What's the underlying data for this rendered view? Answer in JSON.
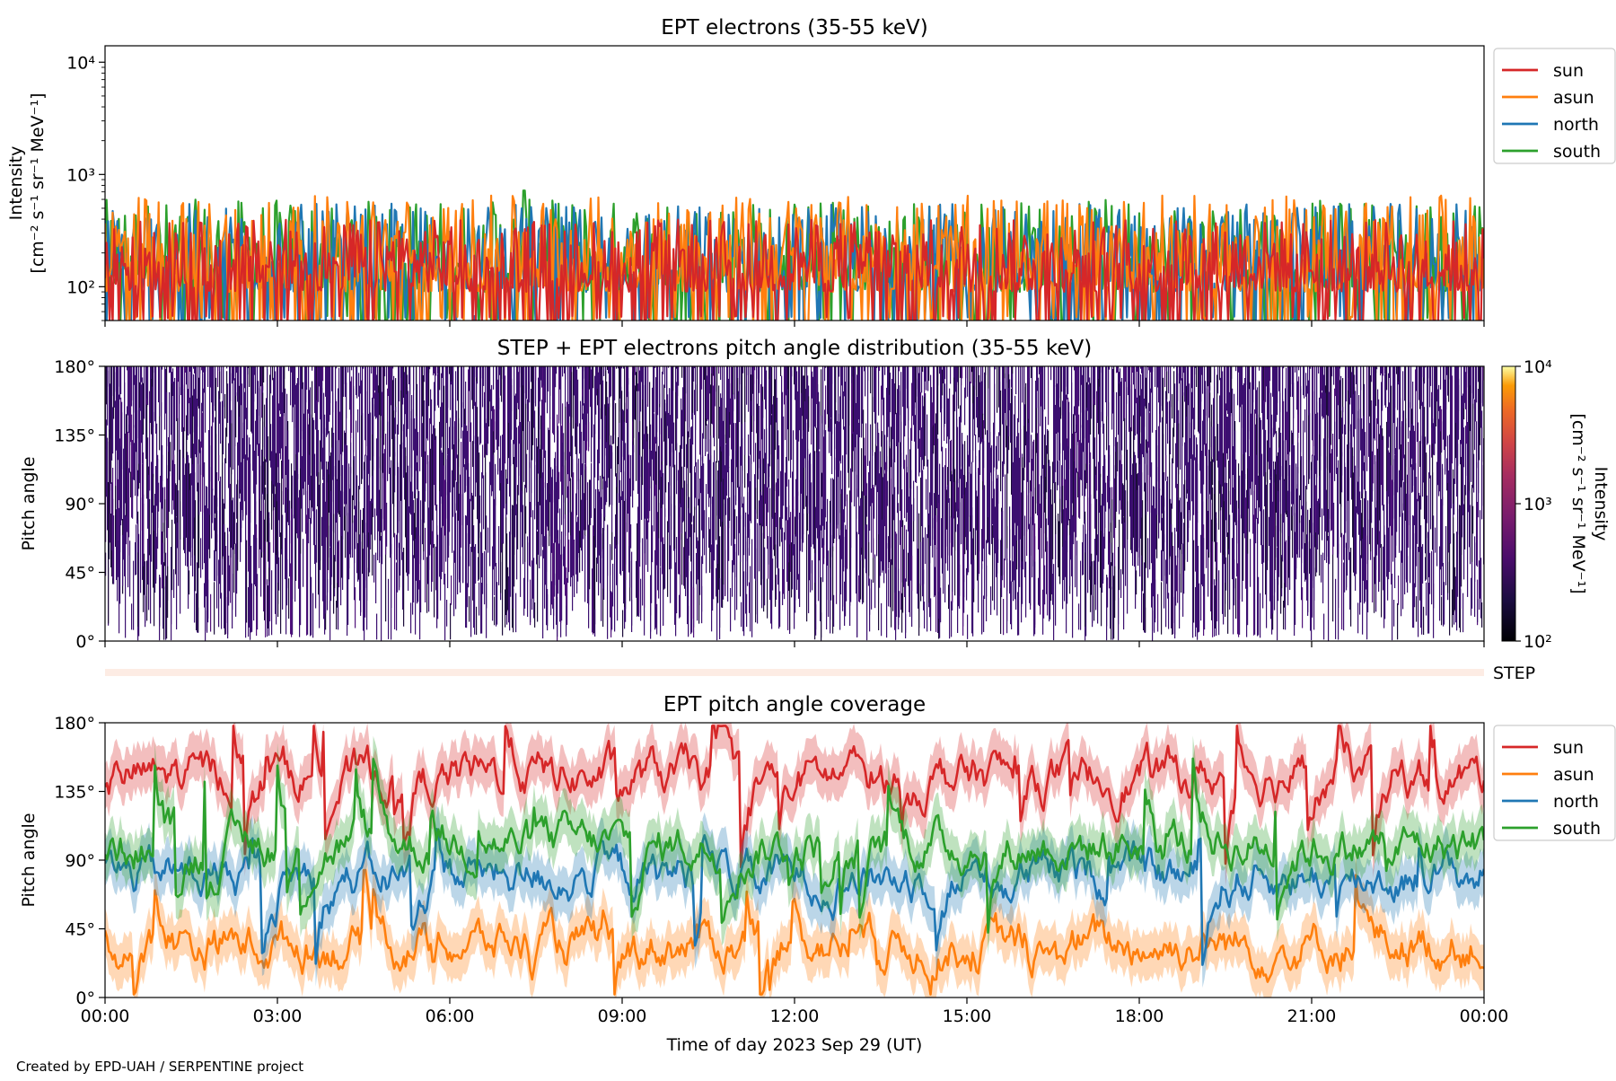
{
  "credit": "Created by EPD-UAH / SERPENTINE project",
  "colors": {
    "sun": "#d62728",
    "asun": "#ff7f0e",
    "north": "#1f77b4",
    "south": "#2ca02c"
  },
  "chart_data": [
    {
      "id": "intensity",
      "type": "line",
      "title": "EPT electrons (35-55 keV)",
      "ylabel_line1": "Intensity",
      "ylabel_line2": "[cm⁻² s⁻¹ sr⁻¹ MeV⁻¹]",
      "yscale": "log",
      "ylim": [
        50,
        14000
      ],
      "yticks": [
        {
          "value": 100,
          "label": "10²"
        },
        {
          "value": 1000,
          "label": "10³"
        },
        {
          "value": 10000,
          "label": "10⁴"
        }
      ],
      "xlim_hours": [
        0,
        24
      ],
      "legend": {
        "placement": "outside-right-top",
        "entries": [
          "sun",
          "asun",
          "north",
          "south"
        ]
      },
      "series": [
        {
          "name": "south",
          "color": "#2ca02c",
          "typical_range": [
            50,
            600
          ],
          "note_peak": 720
        },
        {
          "name": "north",
          "color": "#1f77b4",
          "typical_range": [
            50,
            550
          ]
        },
        {
          "name": "asun",
          "color": "#ff7f0e",
          "typical_range": [
            50,
            650
          ]
        },
        {
          "name": "sun",
          "color": "#d62728",
          "typical_range": [
            50,
            400
          ]
        }
      ]
    },
    {
      "id": "pad",
      "type": "heatmap",
      "title": "STEP + EPT electrons pitch angle distribution (35-55 keV)",
      "ylabel": "Pitch angle",
      "ylim": [
        0,
        180
      ],
      "yticks": [
        "0°",
        "45°",
        "90°",
        "135°",
        "180°"
      ],
      "xlim_hours": [
        0,
        24
      ],
      "colorbar": {
        "label_line1": "Intensity",
        "label_line2": "[cm⁻² s⁻¹ sr⁻¹ MeV⁻¹]",
        "scale": "log",
        "range": [
          100,
          10000
        ],
        "ticks": [
          "10²",
          "10³",
          "10⁴"
        ],
        "colormap": "inferno"
      },
      "dominant_intensity": 180
    },
    {
      "id": "step",
      "type": "bar",
      "label": "STEP",
      "xlim_hours": [
        0,
        24
      ]
    },
    {
      "id": "coverage",
      "type": "line",
      "title": "EPT pitch angle coverage",
      "ylabel": "Pitch angle",
      "ylim": [
        0,
        180
      ],
      "yticks": [
        "0°",
        "45°",
        "90°",
        "135°",
        "180°"
      ],
      "xlabel": "Time of day 2023 Sep 29 (UT)",
      "xticks": [
        "00:00",
        "03:00",
        "06:00",
        "09:00",
        "12:00",
        "15:00",
        "18:00",
        "21:00",
        "00:00"
      ],
      "xlim_hours": [
        0,
        24
      ],
      "legend": {
        "placement": "outside-right-top",
        "entries": [
          "sun",
          "asun",
          "north",
          "south"
        ]
      },
      "series": [
        {
          "name": "sun",
          "color": "#d62728",
          "mean_deg": 145,
          "spread_deg": 25
        },
        {
          "name": "asun",
          "color": "#ff7f0e",
          "mean_deg": 35,
          "spread_deg": 25
        },
        {
          "name": "north",
          "color": "#1f77b4",
          "mean_deg": 80,
          "spread_deg": 25
        },
        {
          "name": "south",
          "color": "#2ca02c",
          "mean_deg": 100,
          "spread_deg": 25
        }
      ]
    }
  ]
}
